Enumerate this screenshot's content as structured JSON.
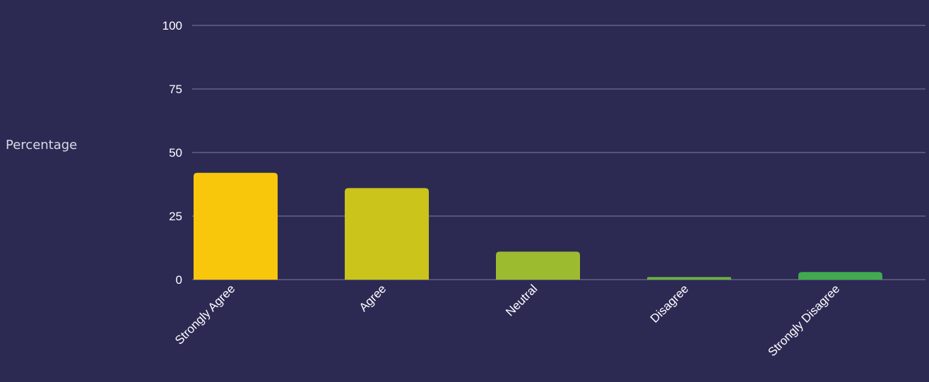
{
  "chart_data": {
    "type": "bar",
    "title": "",
    "xlabel": "",
    "ylabel": "Percentage",
    "ylim": [
      0,
      100
    ],
    "yticks": [
      "0",
      "25",
      "50",
      "75",
      "100"
    ],
    "grid": true,
    "categories": [
      "Strongly Agree",
      "Agree",
      "Neutral",
      "Disagree",
      "Strongly Disagree"
    ],
    "values": [
      42,
      36,
      11,
      1,
      3
    ],
    "colors": [
      "#f8c70b",
      "#cbc41a",
      "#9dbb2f",
      "#6cb23e",
      "#41aa4f"
    ]
  },
  "theme": {
    "background": "#2c2a53",
    "grid_color": "#7d7f9a",
    "text_color": "#ffffff"
  }
}
